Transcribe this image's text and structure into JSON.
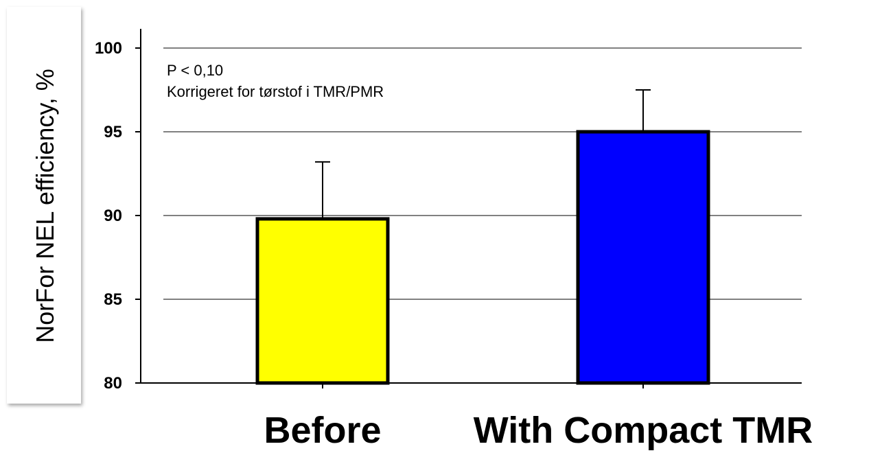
{
  "chart_data": {
    "type": "bar",
    "categories": [
      "Before",
      "With Compact TMR"
    ],
    "series": [
      {
        "values": [
          89.8,
          95.0
        ],
        "error_upper": [
          93.2,
          97.5
        ],
        "colors": [
          "#ffff00",
          "#0000ff"
        ]
      }
    ],
    "ylabel": "NorFor NEL efficiency, %",
    "xlabel": "",
    "ylim": [
      80,
      100
    ],
    "yticks": [
      80,
      85,
      90,
      95,
      100
    ],
    "grid": "horizontal",
    "annotations": [
      "P < 0,10",
      "Korrigeret for tørstof i TMR/PMR"
    ],
    "bar_outline_color": "#000000"
  }
}
